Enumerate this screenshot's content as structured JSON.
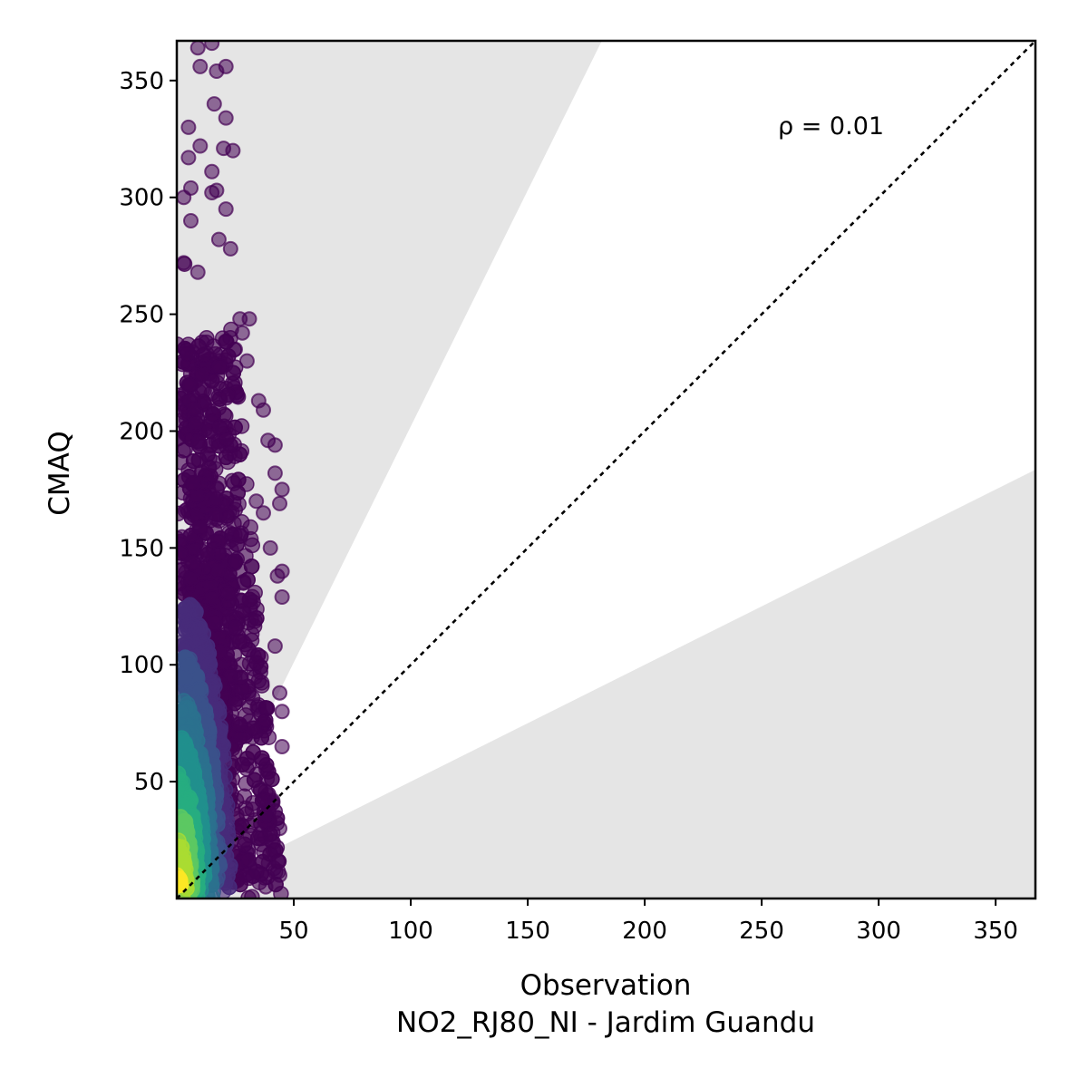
{
  "chart_data": {
    "type": "scatter",
    "xlabel": "Observation",
    "xlabel_station": "NO2_RJ80_NI - Jardim Guandu",
    "ylabel": "CMAQ",
    "xlim": [
      0,
      367
    ],
    "ylim": [
      0,
      367
    ],
    "xticks": [
      50,
      100,
      150,
      200,
      250,
      300,
      350
    ],
    "yticks": [
      50,
      100,
      150,
      200,
      250,
      300,
      350
    ],
    "annotation": "ρ = 0.01",
    "reference_line": "1:1 dashed",
    "shaded_bands": [
      {
        "description": "model > 2x obs",
        "upper_slope": 2.02
      },
      {
        "description": "model < 0.5x obs",
        "lower_slope": 0.5
      }
    ],
    "colormap": "viridis (density)",
    "colors": {
      "band": "#e5e5e5",
      "low_density": "#440154",
      "mid_density": "#31688e",
      "high_density": "#fde725",
      "frame": "#000000"
    },
    "points_sample": [
      {
        "x": 9,
        "y": 364
      },
      {
        "x": 15,
        "y": 366
      },
      {
        "x": 10,
        "y": 356
      },
      {
        "x": 17,
        "y": 354
      },
      {
        "x": 21,
        "y": 356
      },
      {
        "x": 16,
        "y": 340
      },
      {
        "x": 21,
        "y": 334
      },
      {
        "x": 5,
        "y": 330
      },
      {
        "x": 10,
        "y": 322
      },
      {
        "x": 20,
        "y": 321
      },
      {
        "x": 24,
        "y": 320
      },
      {
        "x": 5,
        "y": 317
      },
      {
        "x": 15,
        "y": 311
      },
      {
        "x": 6,
        "y": 304
      },
      {
        "x": 15,
        "y": 302
      },
      {
        "x": 17,
        "y": 303
      },
      {
        "x": 3,
        "y": 300
      },
      {
        "x": 21,
        "y": 295
      },
      {
        "x": 6,
        "y": 290
      },
      {
        "x": 23,
        "y": 278
      },
      {
        "x": 3,
        "y": 272
      },
      {
        "x": 18,
        "y": 282
      },
      {
        "x": 9,
        "y": 268
      },
      {
        "x": 27,
        "y": 248
      },
      {
        "x": 31,
        "y": 248
      },
      {
        "x": 28,
        "y": 242
      },
      {
        "x": 25,
        "y": 235
      },
      {
        "x": 30,
        "y": 230
      },
      {
        "x": 35,
        "y": 213
      },
      {
        "x": 37,
        "y": 209
      },
      {
        "x": 39,
        "y": 196
      },
      {
        "x": 42,
        "y": 194
      },
      {
        "x": 42,
        "y": 182
      },
      {
        "x": 45,
        "y": 175
      },
      {
        "x": 44,
        "y": 169
      },
      {
        "x": 37,
        "y": 165
      },
      {
        "x": 34,
        "y": 170
      },
      {
        "x": 40,
        "y": 150
      },
      {
        "x": 45,
        "y": 140
      },
      {
        "x": 43,
        "y": 138
      },
      {
        "x": 45,
        "y": 129
      },
      {
        "x": 42,
        "y": 108
      },
      {
        "x": 44,
        "y": 88
      },
      {
        "x": 45,
        "y": 80
      },
      {
        "x": 45,
        "y": 65
      },
      {
        "x": 44,
        "y": 30
      },
      {
        "x": 44,
        "y": 10
      },
      {
        "x": 38,
        "y": 5
      },
      {
        "x": 41,
        "y": 42
      }
    ]
  }
}
